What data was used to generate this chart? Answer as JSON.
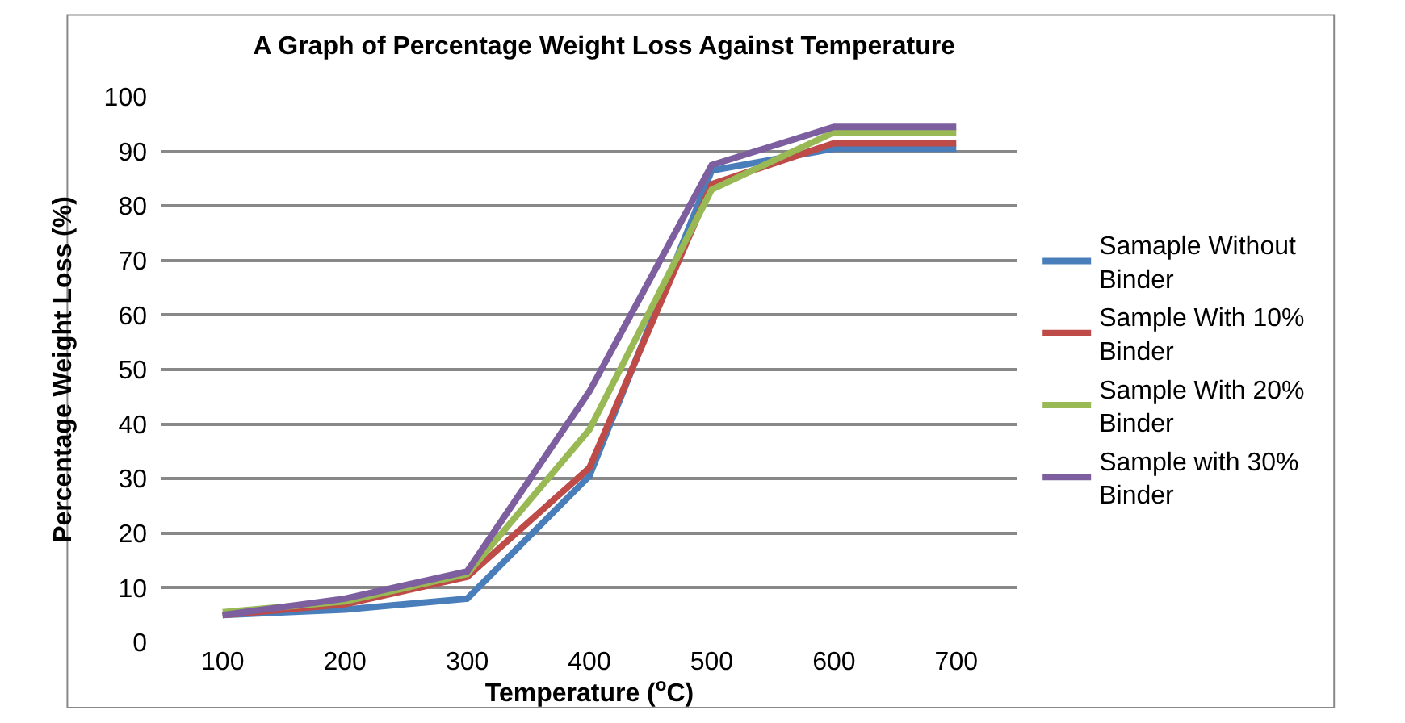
{
  "chart_data": {
    "type": "line",
    "title": "A Graph of Percentage Weight Loss Against Temperature",
    "xlabel": "Temperature ($^{o}$C)",
    "ylabel": "Percentage Weight Loss (%)",
    "categories": [
      "100",
      "200",
      "300",
      "400",
      "500",
      "600",
      "700"
    ],
    "series": [
      {
        "name": "Samaple Without Binder",
        "color": "#4a7ebb",
        "values": [
          5,
          6,
          8,
          30.5,
          86.5,
          90.5,
          90.5
        ]
      },
      {
        "name": "Sample With 10% Binder",
        "color": "#be4b48",
        "values": [
          5,
          7,
          12,
          32,
          84,
          91.5,
          91.5
        ]
      },
      {
        "name": "Sample With 20% Binder",
        "color": "#98b954",
        "values": [
          5.5,
          7.5,
          12.5,
          39,
          83,
          93.5,
          93.5
        ]
      },
      {
        "name": "Sample with 30% Binder",
        "color": "#7d5fa0",
        "values": [
          5,
          8,
          13,
          46,
          87.5,
          94.5,
          94.5
        ]
      }
    ],
    "ylim": [
      0,
      100
    ],
    "yticks": [
      0,
      10,
      20,
      30,
      40,
      50,
      60,
      70,
      80,
      90,
      100
    ],
    "grid": "y",
    "legend": "right",
    "marker": "none",
    "line_style": "solid"
  }
}
